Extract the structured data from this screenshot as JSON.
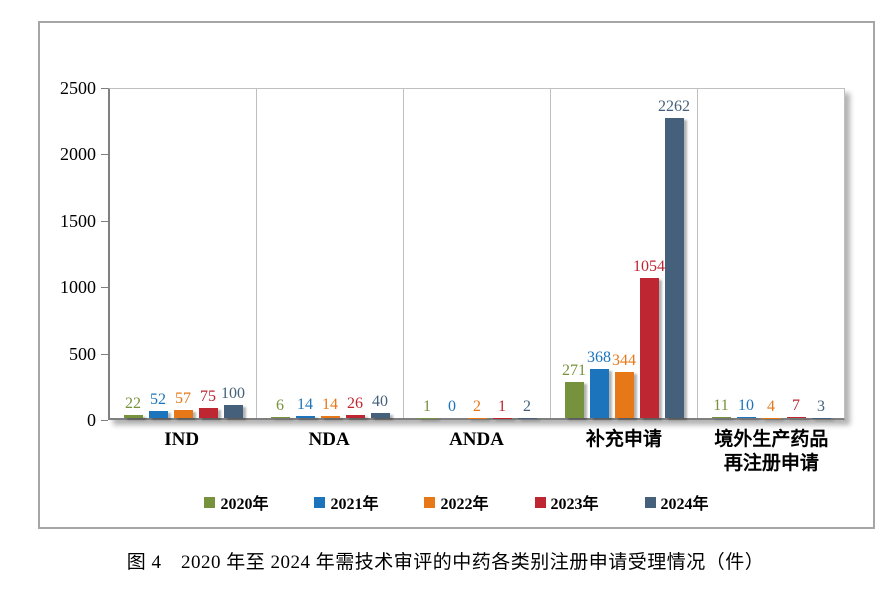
{
  "caption": "图 4　2020 年至 2024 年需技术审评的中药各类别注册申请受理情况（件）",
  "frame_border_color": "#a6a6a6",
  "chart_data": {
    "type": "bar",
    "title": "",
    "xlabel": "",
    "ylabel": "",
    "categories": [
      "IND",
      "NDA",
      "ANDA",
      "补充申请",
      "境外生产药品\n再注册申请"
    ],
    "series": [
      {
        "name": "2020年",
        "color": "#76923C",
        "values": [
          22,
          6,
          1,
          271,
          11
        ]
      },
      {
        "name": "2021年",
        "color": "#1B74BC",
        "values": [
          52,
          14,
          0,
          368,
          10
        ]
      },
      {
        "name": "2022年",
        "color": "#E67817",
        "values": [
          57,
          14,
          2,
          344,
          4
        ]
      },
      {
        "name": "2023年",
        "color": "#BE2631",
        "values": [
          75,
          26,
          1,
          1054,
          7
        ]
      },
      {
        "name": "2024年",
        "color": "#44607A",
        "values": [
          100,
          40,
          2,
          2262,
          3
        ]
      }
    ],
    "ylim": [
      0,
      2500
    ],
    "yticks": [
      0,
      500,
      1000,
      1500,
      2000,
      2500
    ],
    "legend_position": "bottom",
    "grid": "vertical-category-separators",
    "bar_value_labels": true
  }
}
